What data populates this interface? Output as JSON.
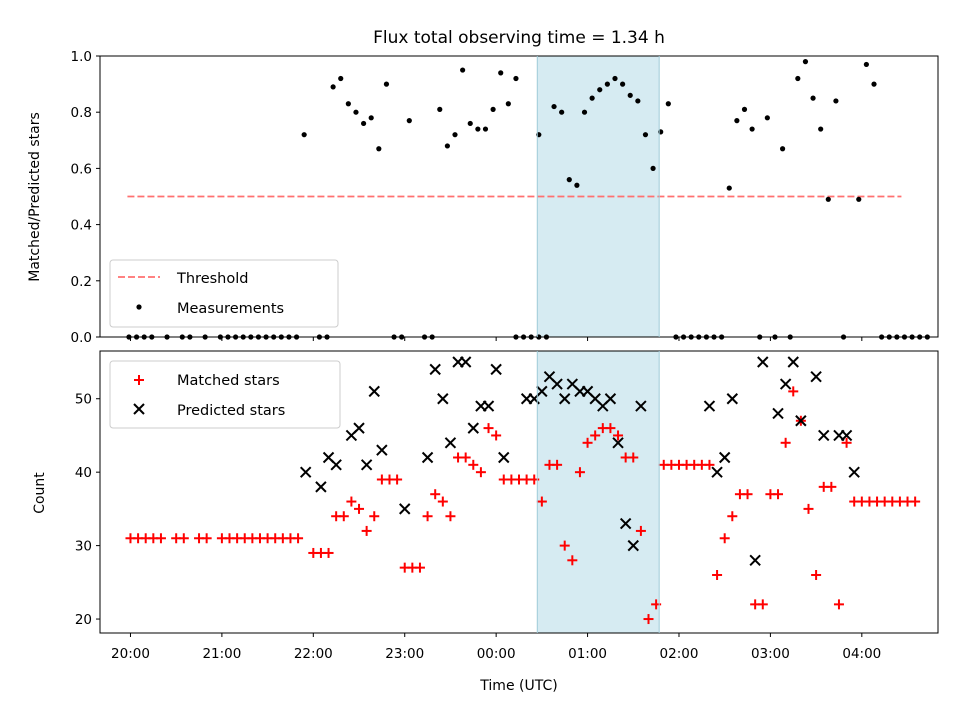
{
  "title": "Flux total observing time = 1.34 h",
  "colors": {
    "threshold": "#ff7070",
    "measurement": "#000000",
    "matched": "#ff0000",
    "predicted": "#000000",
    "highlight": "#add8e6"
  },
  "chart_data": [
    {
      "type": "scatter",
      "ylabel": "Matched/Predicted stars",
      "ylim": [
        0,
        1.0
      ],
      "yticks": [
        "0.0",
        "0.2",
        "0.4",
        "0.6",
        "0.8",
        "1.0"
      ],
      "xlim": [
        "19:40",
        "04:50"
      ],
      "highlight_span": [
        "00:27",
        "01:47"
      ],
      "legend": {
        "position": "lower left",
        "entries": [
          "Threshold",
          "Measurements"
        ]
      },
      "threshold": {
        "name": "Threshold",
        "value": 0.5,
        "x_range": [
          "19:58",
          "04:26"
        ],
        "style": "dashed"
      },
      "series": [
        {
          "name": "Measurements",
          "points": [
            [
              "19:59",
              0
            ],
            [
              "20:04",
              0
            ],
            [
              "20:09",
              0
            ],
            [
              "20:14",
              0
            ],
            [
              "20:24",
              0
            ],
            [
              "20:34",
              0
            ],
            [
              "20:39",
              0
            ],
            [
              "20:49",
              0
            ],
            [
              "20:59",
              0
            ],
            [
              "21:04",
              0
            ],
            [
              "21:09",
              0
            ],
            [
              "21:14",
              0
            ],
            [
              "21:19",
              0
            ],
            [
              "21:24",
              0
            ],
            [
              "21:29",
              0
            ],
            [
              "21:34",
              0
            ],
            [
              "21:39",
              0
            ],
            [
              "21:44",
              0
            ],
            [
              "21:49",
              0
            ],
            [
              "22:04",
              0
            ],
            [
              "22:09",
              0
            ],
            [
              "21:54",
              0.72
            ],
            [
              "22:13",
              0.89
            ],
            [
              "22:18",
              0.92
            ],
            [
              "22:23",
              0.83
            ],
            [
              "22:28",
              0.8
            ],
            [
              "22:33",
              0.76
            ],
            [
              "22:38",
              0.78
            ],
            [
              "22:43",
              0.67
            ],
            [
              "22:48",
              0.9
            ],
            [
              "22:53",
              0
            ],
            [
              "22:58",
              0
            ],
            [
              "23:13",
              0
            ],
            [
              "23:18",
              0
            ],
            [
              "23:03",
              0.77
            ],
            [
              "23:23",
              0.81
            ],
            [
              "23:28",
              0.68
            ],
            [
              "23:33",
              0.72
            ],
            [
              "23:38",
              0.95
            ],
            [
              "23:43",
              0.76
            ],
            [
              "23:48",
              0.74
            ],
            [
              "23:53",
              0.74
            ],
            [
              "23:58",
              0.81
            ],
            [
              "00:03",
              0.94
            ],
            [
              "00:08",
              0.83
            ],
            [
              "00:13",
              0.92
            ],
            [
              "00:13",
              0
            ],
            [
              "00:18",
              0
            ],
            [
              "00:23",
              0
            ],
            [
              "00:28",
              0
            ],
            [
              "00:33",
              0
            ],
            [
              "00:28",
              0.72
            ],
            [
              "00:38",
              0.82
            ],
            [
              "00:43",
              0.8
            ],
            [
              "00:48",
              0.56
            ],
            [
              "00:53",
              0.54
            ],
            [
              "00:58",
              0.8
            ],
            [
              "01:03",
              0.85
            ],
            [
              "01:08",
              0.88
            ],
            [
              "01:13",
              0.9
            ],
            [
              "01:18",
              0.92
            ],
            [
              "01:23",
              0.9
            ],
            [
              "01:28",
              0.86
            ],
            [
              "01:33",
              0.84
            ],
            [
              "01:38",
              0.72
            ],
            [
              "01:43",
              0.6
            ],
            [
              "01:48",
              0.73
            ],
            [
              "01:53",
              0.83
            ],
            [
              "01:58",
              0
            ],
            [
              "02:03",
              0
            ],
            [
              "02:08",
              0
            ],
            [
              "02:13",
              0
            ],
            [
              "02:18",
              0
            ],
            [
              "02:23",
              0
            ],
            [
              "02:28",
              0
            ],
            [
              "02:33",
              0.53
            ],
            [
              "02:38",
              0.77
            ],
            [
              "02:43",
              0.81
            ],
            [
              "02:48",
              0.74
            ],
            [
              "02:58",
              0.78
            ],
            [
              "03:08",
              0.67
            ],
            [
              "03:18",
              0.92
            ],
            [
              "03:23",
              0.98
            ],
            [
              "03:28",
              0.85
            ],
            [
              "03:33",
              0.74
            ],
            [
              "03:38",
              0.49
            ],
            [
              "03:43",
              0.84
            ],
            [
              "03:58",
              0.49
            ],
            [
              "04:03",
              0.97
            ],
            [
              "04:08",
              0.9
            ],
            [
              "02:53",
              0
            ],
            [
              "03:03",
              0
            ],
            [
              "03:13",
              0
            ],
            [
              "03:48",
              0
            ],
            [
              "04:13",
              0
            ],
            [
              "04:18",
              0
            ],
            [
              "04:23",
              0
            ],
            [
              "04:28",
              0
            ],
            [
              "04:33",
              0
            ],
            [
              "04:38",
              0
            ],
            [
              "04:43",
              0
            ]
          ]
        }
      ]
    },
    {
      "type": "scatter",
      "ylabel": "Count",
      "xlabel": "Time (UTC)",
      "ylim": [
        18.1,
        56.5
      ],
      "yticks": [
        "20",
        "30",
        "40",
        "50"
      ],
      "xticks": [
        "20:00",
        "21:00",
        "22:00",
        "23:00",
        "00:00",
        "01:00",
        "02:00",
        "03:00",
        "04:00"
      ],
      "xlim": [
        "19:40",
        "04:50"
      ],
      "highlight_span": [
        "00:27",
        "01:47"
      ],
      "legend": {
        "position": "upper left",
        "entries": [
          "Matched stars",
          "Predicted stars"
        ]
      },
      "series": [
        {
          "name": "Matched stars",
          "marker": "plus",
          "points": [
            [
              "20:00",
              31
            ],
            [
              "20:05",
              31
            ],
            [
              "20:10",
              31
            ],
            [
              "20:15",
              31
            ],
            [
              "20:20",
              31
            ],
            [
              "20:30",
              31
            ],
            [
              "20:35",
              31
            ],
            [
              "20:45",
              31
            ],
            [
              "20:50",
              31
            ],
            [
              "21:00",
              31
            ],
            [
              "21:05",
              31
            ],
            [
              "21:10",
              31
            ],
            [
              "21:15",
              31
            ],
            [
              "21:20",
              31
            ],
            [
              "21:25",
              31
            ],
            [
              "21:30",
              31
            ],
            [
              "21:35",
              31
            ],
            [
              "21:40",
              31
            ],
            [
              "21:45",
              31
            ],
            [
              "21:50",
              31
            ],
            [
              "22:00",
              29
            ],
            [
              "22:05",
              29
            ],
            [
              "22:10",
              29
            ],
            [
              "22:15",
              34
            ],
            [
              "22:20",
              34
            ],
            [
              "22:25",
              36
            ],
            [
              "22:30",
              35
            ],
            [
              "22:35",
              32
            ],
            [
              "22:40",
              34
            ],
            [
              "22:45",
              39
            ],
            [
              "22:50",
              39
            ],
            [
              "22:55",
              39
            ],
            [
              "23:00",
              27
            ],
            [
              "23:05",
              27
            ],
            [
              "23:10",
              27
            ],
            [
              "23:15",
              34
            ],
            [
              "23:20",
              37
            ],
            [
              "23:25",
              36
            ],
            [
              "23:30",
              34
            ],
            [
              "23:35",
              42
            ],
            [
              "23:40",
              42
            ],
            [
              "23:45",
              41
            ],
            [
              "23:50",
              40
            ],
            [
              "23:55",
              46
            ],
            [
              "00:00",
              45
            ],
            [
              "00:05",
              39
            ],
            [
              "00:10",
              39
            ],
            [
              "00:15",
              39
            ],
            [
              "00:20",
              39
            ],
            [
              "00:25",
              39
            ],
            [
              "00:30",
              36
            ],
            [
              "00:35",
              41
            ],
            [
              "00:40",
              41
            ],
            [
              "00:45",
              30
            ],
            [
              "00:50",
              28
            ],
            [
              "00:55",
              40
            ],
            [
              "01:00",
              44
            ],
            [
              "01:05",
              45
            ],
            [
              "01:10",
              46
            ],
            [
              "01:15",
              46
            ],
            [
              "01:20",
              45
            ],
            [
              "01:25",
              42
            ],
            [
              "01:30",
              42
            ],
            [
              "01:35",
              32
            ],
            [
              "01:40",
              20
            ],
            [
              "01:45",
              22
            ],
            [
              "01:50",
              41
            ],
            [
              "01:55",
              41
            ],
            [
              "02:00",
              41
            ],
            [
              "02:05",
              41
            ],
            [
              "02:10",
              41
            ],
            [
              "02:15",
              41
            ],
            [
              "02:20",
              41
            ],
            [
              "02:25",
              26
            ],
            [
              "02:30",
              31
            ],
            [
              "02:35",
              34
            ],
            [
              "02:40",
              37
            ],
            [
              "02:45",
              37
            ],
            [
              "02:50",
              22
            ],
            [
              "02:55",
              22
            ],
            [
              "03:00",
              37
            ],
            [
              "03:05",
              37
            ],
            [
              "03:10",
              44
            ],
            [
              "03:15",
              51
            ],
            [
              "03:20",
              47
            ],
            [
              "03:25",
              35
            ],
            [
              "03:30",
              26
            ],
            [
              "03:35",
              38
            ],
            [
              "03:40",
              38
            ],
            [
              "03:45",
              22
            ],
            [
              "03:50",
              44
            ],
            [
              "03:55",
              36
            ],
            [
              "04:00",
              36
            ],
            [
              "04:05",
              36
            ],
            [
              "04:10",
              36
            ],
            [
              "04:15",
              36
            ],
            [
              "04:20",
              36
            ],
            [
              "04:25",
              36
            ],
            [
              "04:30",
              36
            ],
            [
              "04:35",
              36
            ]
          ]
        },
        {
          "name": "Predicted stars",
          "marker": "x",
          "points": [
            [
              "21:55",
              40
            ],
            [
              "22:05",
              38
            ],
            [
              "22:10",
              42
            ],
            [
              "22:15",
              41
            ],
            [
              "22:25",
              45
            ],
            [
              "22:30",
              46
            ],
            [
              "22:35",
              41
            ],
            [
              "22:40",
              51
            ],
            [
              "22:45",
              43
            ],
            [
              "23:00",
              35
            ],
            [
              "23:15",
              42
            ],
            [
              "23:20",
              54
            ],
            [
              "23:25",
              50
            ],
            [
              "23:30",
              44
            ],
            [
              "23:35",
              55
            ],
            [
              "23:40",
              55
            ],
            [
              "23:45",
              46
            ],
            [
              "23:50",
              49
            ],
            [
              "23:55",
              49
            ],
            [
              "00:00",
              54
            ],
            [
              "00:05",
              42
            ],
            [
              "00:20",
              50
            ],
            [
              "00:25",
              50
            ],
            [
              "00:30",
              51
            ],
            [
              "00:35",
              53
            ],
            [
              "00:40",
              52
            ],
            [
              "00:45",
              50
            ],
            [
              "00:50",
              52
            ],
            [
              "00:55",
              51
            ],
            [
              "01:00",
              51
            ],
            [
              "01:05",
              50
            ],
            [
              "01:10",
              49
            ],
            [
              "01:15",
              50
            ],
            [
              "01:20",
              44
            ],
            [
              "01:25",
              33
            ],
            [
              "01:30",
              30
            ],
            [
              "01:35",
              49
            ],
            [
              "02:20",
              49
            ],
            [
              "02:25",
              40
            ],
            [
              "02:30",
              42
            ],
            [
              "02:35",
              50
            ],
            [
              "02:50",
              28
            ],
            [
              "02:55",
              55
            ],
            [
              "03:05",
              48
            ],
            [
              "03:10",
              52
            ],
            [
              "03:15",
              55
            ],
            [
              "03:20",
              47
            ],
            [
              "03:30",
              53
            ],
            [
              "03:35",
              45
            ],
            [
              "03:45",
              45
            ],
            [
              "03:50",
              45
            ],
            [
              "03:55",
              40
            ]
          ]
        }
      ]
    }
  ]
}
